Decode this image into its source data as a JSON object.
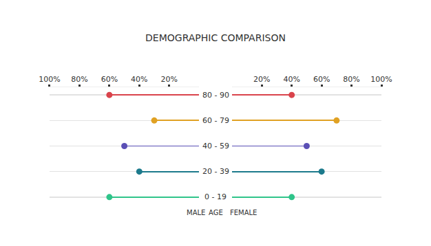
{
  "chart_data": {
    "type": "butterfly_dumbbell",
    "title": "DEMOGRAPHIC COMPARISON",
    "ylabel": "AGE",
    "categories": [
      "80 - 90",
      "60 - 79",
      "40 - 59",
      "20 - 39",
      "0 - 19"
    ],
    "colors": [
      "#d9434b",
      "#e0a123",
      "#5a4fb5",
      "#1c7a8c",
      "#2fc48a"
    ],
    "series": [
      {
        "name": "MALE",
        "values": [
          60,
          30,
          50,
          40,
          60
        ]
      },
      {
        "name": "FEMALE",
        "values": [
          40,
          70,
          50,
          60,
          40
        ]
      }
    ],
    "xlim": [
      0,
      100
    ],
    "xticks": [
      {
        "value": 20,
        "label": "20%"
      },
      {
        "value": 40,
        "label": "40%"
      },
      {
        "value": 60,
        "label": "60%"
      },
      {
        "value": 80,
        "label": "80%"
      },
      {
        "value": 100,
        "label": "100%"
      }
    ],
    "grid": true,
    "marker": "circle"
  }
}
